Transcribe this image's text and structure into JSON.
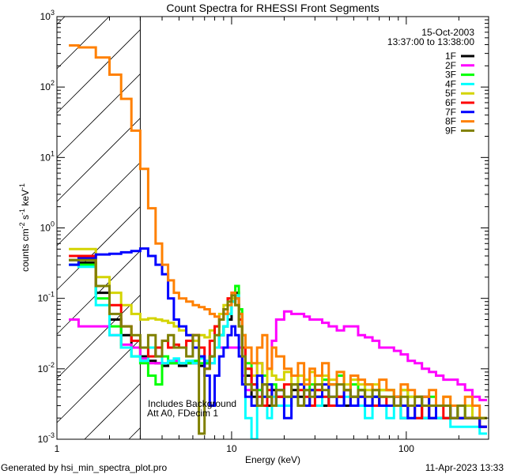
{
  "chart_data": {
    "type": "line",
    "title": "Count Spectra for RHESSI Front Segments",
    "xlabel": "Energy (keV)",
    "ylabel": "counts cm-2 s-1 keV-1",
    "ylabel_parts": {
      "base": "counts cm",
      "e1": "-2",
      "mid1": " s",
      "e2": "-1",
      "mid2": " keV",
      "e3": "-1"
    },
    "xscale": "log",
    "yscale": "log",
    "xlim": [
      1,
      296
    ],
    "ylim": [
      0.001,
      1000
    ],
    "x_tick_labels": [
      "1",
      "10",
      "100"
    ],
    "x_ticks": [
      1,
      10,
      100
    ],
    "y_ticks": [
      0.001,
      0.01,
      0.1,
      1,
      10,
      100,
      1000
    ],
    "y_tick_labels": [
      {
        "base": "10",
        "exp": "-3"
      },
      {
        "base": "10",
        "exp": "-2"
      },
      {
        "base": "10",
        "exp": "-1"
      },
      {
        "base": "10",
        "exp": "0"
      },
      {
        "base": "10",
        "exp": "1"
      },
      {
        "base": "10",
        "exp": "2"
      },
      {
        "base": "10",
        "exp": "3"
      }
    ],
    "grid": false,
    "hatched_region_keV": [
      1,
      3
    ],
    "legend_position": "top-right",
    "legend_header": [
      "15-Oct-2003",
      "13:37:00 to 13:38:00"
    ],
    "annotations": [
      "Includes Background",
      "Att A0, FDecim 1"
    ],
    "energy_edges": [
      1.17,
      1.33,
      1.67,
      2,
      2.33,
      2.67,
      3,
      3.33,
      3.67,
      4,
      4.33,
      4.67,
      5,
      5.5,
      6,
      6.5,
      7,
      7.5,
      8,
      8.5,
      9,
      9.5,
      10,
      10.5,
      11,
      11.5,
      12,
      13,
      14,
      15,
      16,
      17,
      18,
      20,
      22,
      24,
      26,
      28,
      30,
      33,
      36,
      40,
      44,
      48,
      53,
      58,
      64,
      70,
      77,
      85,
      93,
      102,
      112,
      123,
      135,
      148,
      163,
      179,
      197,
      217,
      239,
      263,
      290
    ],
    "series": [
      {
        "name": "1F",
        "color": "#000000",
        "values": [
          0.35,
          0.32,
          0.12,
          0.05,
          0.03,
          0.02,
          0.015,
          0.013,
          0.012,
          0.011,
          0.012,
          0.012,
          0.011,
          0.012,
          0.012,
          0.011,
          0.012,
          0.015,
          0.02,
          0.03,
          0.04,
          0.05,
          0.09,
          0.12,
          0.06,
          0.02,
          0.008,
          0.004,
          0.003,
          0.006,
          0.003,
          0.005,
          0.004,
          0.003,
          0.005,
          0.004,
          0.003,
          0.005,
          0.004,
          0.003,
          0.006,
          0.004,
          0.003,
          0.004,
          0.005,
          0.003,
          0.004,
          0.003,
          0.003,
          0.004,
          0.002,
          0.003,
          0.003,
          0.002,
          0.003,
          0.002,
          0.002,
          0.003,
          0.002,
          0.002,
          0.002,
          0.0015
        ]
      },
      {
        "name": "2F",
        "color": "#ff00ff",
        "values": [
          0.05,
          0.04,
          0.04,
          0.03,
          0.022,
          0.02,
          0.014,
          0.012,
          0.012,
          0.012,
          0.013,
          0.013,
          0.012,
          0.012,
          0.012,
          0.015,
          0.013,
          0.012,
          0.02,
          0.02,
          0.02,
          0.02,
          0.02,
          0.02,
          0.02,
          0.008,
          0.005,
          0.008,
          0.012,
          0.008,
          0.01,
          0.025,
          0.05,
          0.065,
          0.06,
          0.06,
          0.055,
          0.05,
          0.05,
          0.045,
          0.04,
          0.035,
          0.04,
          0.04,
          0.03,
          0.028,
          0.025,
          0.02,
          0.02,
          0.018,
          0.016,
          0.013,
          0.012,
          0.01,
          0.009,
          0.008,
          0.007,
          0.007,
          0.006,
          0.005,
          0.004,
          0.0036
        ]
      },
      {
        "name": "3F",
        "color": "#00ff00",
        "values": [
          0.3,
          0.3,
          0.1,
          0.04,
          0.02,
          0.015,
          0.012,
          0.008,
          0.006,
          0.015,
          0.012,
          0.012,
          0.012,
          0.012,
          0.013,
          0.012,
          0.012,
          0.015,
          0.02,
          0.03,
          0.04,
          0.06,
          0.1,
          0.15,
          0.07,
          0.03,
          0.012,
          0.006,
          0.005,
          0.008,
          0.004,
          0.006,
          0.005,
          0.004,
          0.006,
          0.008,
          0.005,
          0.006,
          0.005,
          0.007,
          0.006,
          0.008,
          0.005,
          0.006,
          0.005,
          0.006,
          0.004,
          0.005,
          0.005,
          0.004,
          0.005,
          0.004,
          0.004,
          0.003,
          0.004,
          0.003,
          0.003,
          0.003,
          0.002,
          0.003,
          0.002,
          0.002
        ]
      },
      {
        "name": "4F",
        "color": "#00ffff",
        "values": [
          0.3,
          0.28,
          0.08,
          0.03,
          0.02,
          0.015,
          0.013,
          0.02,
          0.015,
          0.012,
          0.013,
          0.014,
          0.012,
          0.013,
          0.012,
          0.014,
          0.013,
          0.012,
          0.02,
          0.03,
          0.04,
          0.06,
          0.09,
          0.11,
          0.05,
          0.02,
          0.002,
          0.001,
          0.003,
          0.004,
          0.002,
          0.004,
          0.003,
          0.003,
          0.004,
          0.003,
          0.004,
          0.003,
          0.003,
          0.004,
          0.003,
          0.003,
          0.004,
          0.003,
          0.003,
          0.002,
          0.003,
          0.003,
          0.002,
          0.003,
          0.002,
          0.002,
          0.002,
          0.002,
          0.002,
          0.002,
          0.002,
          0.0015,
          0.0015,
          0.0015,
          0.0015,
          0.0012
        ]
      },
      {
        "name": "5F",
        "color": "#d4d400",
        "values": [
          0.5,
          0.5,
          0.2,
          0.12,
          0.08,
          0.06,
          0.05,
          0.052,
          0.05,
          0.048,
          0.045,
          0.04,
          0.035,
          0.03,
          0.025,
          0.03,
          0.028,
          0.035,
          0.04,
          0.06,
          0.08,
          0.1,
          0.1,
          0.08,
          0.04,
          0.02,
          0.01,
          0.008,
          0.012,
          0.006,
          0.01,
          0.008,
          0.007,
          0.009,
          0.006,
          0.008,
          0.007,
          0.009,
          0.006,
          0.008,
          0.007,
          0.009,
          0.006,
          0.007,
          0.006,
          0.005,
          0.006,
          0.005,
          0.005,
          0.004,
          0.005,
          0.004,
          0.004,
          0.004,
          0.003,
          0.003,
          0.004,
          0.003,
          0.003,
          0.003,
          0.002,
          0.002
        ]
      },
      {
        "name": "6F",
        "color": "#ff0000",
        "values": [
          0.4,
          0.4,
          0.15,
          0.08,
          0.04,
          0.025,
          0.02,
          0.015,
          0.02,
          0.025,
          0.02,
          0.022,
          0.02,
          0.025,
          0.03,
          0.02,
          0.01,
          0.025,
          0.04,
          0.05,
          0.07,
          0.1,
          0.12,
          0.1,
          0.05,
          0.02,
          0.01,
          0.006,
          0.004,
          0.003,
          0.005,
          0.003,
          0.004,
          0.006,
          0.004,
          0.005,
          0.004,
          0.003,
          0.005,
          0.004,
          0.003,
          0.004,
          0.005,
          0.003,
          0.004,
          0.003,
          0.003,
          0.004,
          0.003,
          0.003,
          0.003,
          0.003,
          0.002,
          0.003,
          0.002,
          0.003,
          0.002,
          0.002,
          0.002,
          0.002,
          0.002,
          0.0015
        ]
      },
      {
        "name": "7F",
        "color": "#0000ff",
        "values": [
          0.3,
          0.37,
          0.42,
          0.43,
          0.45,
          0.47,
          0.51,
          0.4,
          0.3,
          0.22,
          0.1,
          0.05,
          0.04,
          0.03,
          0.02,
          0.015,
          0.008,
          0.003,
          0.008,
          0.015,
          0.02,
          0.03,
          0.04,
          0.03,
          0.015,
          0.006,
          0.004,
          0.003,
          0.008,
          0.004,
          0.006,
          0.003,
          0.005,
          0.002,
          0.004,
          0.006,
          0.003,
          0.005,
          0.004,
          0.006,
          0.004,
          0.003,
          0.005,
          0.003,
          0.004,
          0.003,
          0.004,
          0.003,
          0.003,
          0.004,
          0.003,
          0.002,
          0.003,
          0.004,
          0.002,
          0.003,
          0.003,
          0.002,
          0.002,
          0.002,
          0.002,
          0.0015
        ]
      },
      {
        "name": "8F",
        "color": "#ff8000",
        "values": [
          390,
          365,
          263,
          150,
          68,
          24,
          6.9,
          1.9,
          0.6,
          0.3,
          0.18,
          0.12,
          0.1,
          0.09,
          0.08,
          0.075,
          0.07,
          0.06,
          0.055,
          0.05,
          0.06,
          0.08,
          0.12,
          0.1,
          0.06,
          0.03,
          0.02,
          0.012,
          0.02,
          0.03,
          0.01,
          0.02,
          0.015,
          0.01,
          0.008,
          0.012,
          0.006,
          0.01,
          0.008,
          0.012,
          0.006,
          0.009,
          0.005,
          0.008,
          0.007,
          0.006,
          0.005,
          0.007,
          0.005,
          0.004,
          0.006,
          0.005,
          0.004,
          0.004,
          0.005,
          0.003,
          0.004,
          0.003,
          0.003,
          0.004,
          0.003,
          0.002
        ]
      },
      {
        "name": "9F",
        "color": "#808000",
        "values": [
          0.35,
          0.35,
          0.15,
          0.06,
          0.04,
          0.03,
          0.02,
          0.03,
          0.015,
          0.025,
          0.03,
          0.02,
          0.02,
          0.015,
          0.03,
          0.0012,
          0.01,
          0.015,
          0.03,
          0.05,
          0.07,
          0.09,
          0.11,
          0.08,
          0.04,
          0.015,
          0.006,
          0.005,
          0.003,
          0.006,
          0.004,
          0.003,
          0.005,
          0.004,
          0.006,
          0.003,
          0.005,
          0.004,
          0.006,
          0.005,
          0.004,
          0.006,
          0.005,
          0.004,
          0.005,
          0.004,
          0.005,
          0.004,
          0.004,
          0.003,
          0.004,
          0.003,
          0.004,
          0.003,
          0.003,
          0.003,
          0.003,
          0.002,
          0.003,
          0.002,
          0.002,
          0.002
        ]
      }
    ]
  },
  "footer": {
    "generated_by": "Generated by hsi_min_spectra_plot.pro",
    "timestamp": "11-Apr-2023 13:33"
  }
}
